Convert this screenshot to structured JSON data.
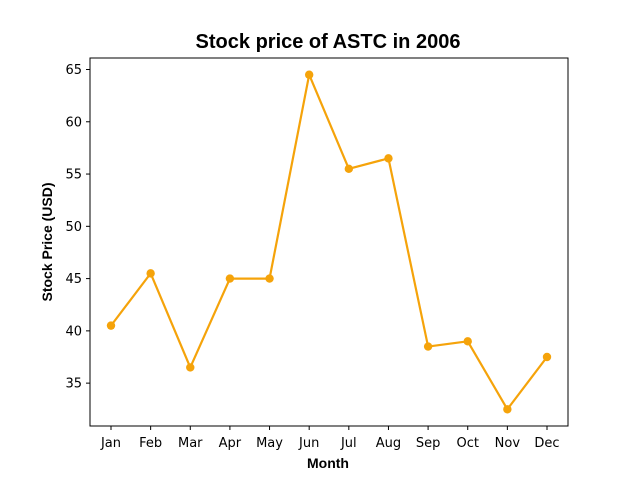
{
  "chart_data": {
    "type": "line",
    "title": "Stock price of ASTC in 2006",
    "xlabel": "Month",
    "ylabel": "Stock Price (USD)",
    "categories": [
      "Jan",
      "Feb",
      "Mar",
      "Apr",
      "May",
      "Jun",
      "Jul",
      "Aug",
      "Sep",
      "Oct",
      "Nov",
      "Dec"
    ],
    "series": [
      {
        "values": [
          40.5,
          45.5,
          36.5,
          45.0,
          45.0,
          64.5,
          55.5,
          56.5,
          38.5,
          39.0,
          32.5,
          37.5
        ],
        "color": "#f5a30a"
      }
    ],
    "ylim": [
      30.9,
      66.1
    ],
    "yticks": [
      35,
      40,
      45,
      50,
      55,
      60,
      65
    ],
    "grid": false,
    "legend": "none"
  }
}
